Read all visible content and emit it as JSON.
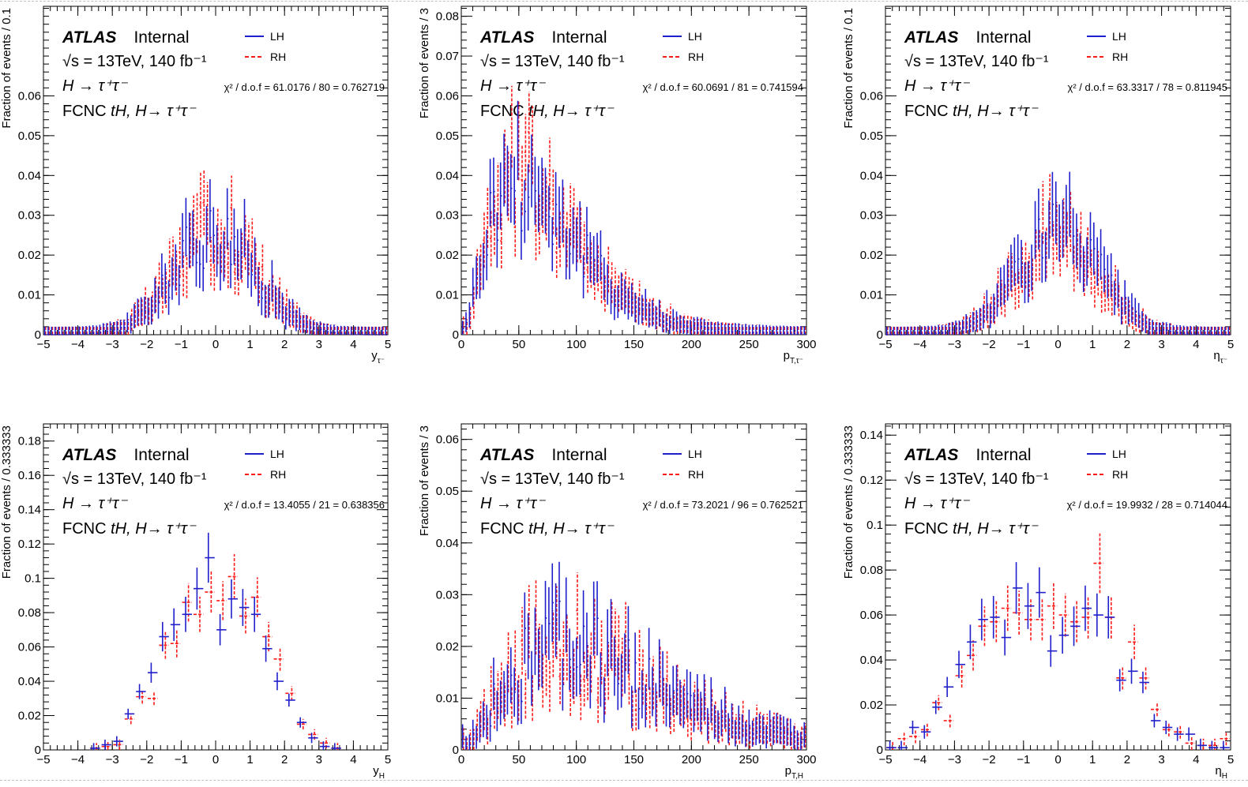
{
  "header": {
    "experiment": "ATLAS",
    "status": "Internal",
    "energy": "√s = 13TeV, 140 fb⁻¹",
    "process": "H → τ⁺τ⁻",
    "channel_prefix": "FCNC ",
    "channel_italic": "tH, H→ τ⁺τ⁻"
  },
  "legend": {
    "lh": "LH",
    "rh": "RH"
  },
  "colors": {
    "lh": "#1f1fcc",
    "rh": "#ff1a1a"
  },
  "chart_data": [
    {
      "type": "scatter",
      "xlabel": "y_τ⁻",
      "ylabel": "Fraction of events / 0.1",
      "xlim": [
        -5,
        5
      ],
      "ylim": [
        0,
        0.0825
      ],
      "xticks": [
        -5,
        -4,
        -3,
        -2,
        -1,
        0,
        1,
        2,
        3,
        4,
        5
      ],
      "xtick_labels": [
        "−5",
        "−4",
        "−3",
        "−2",
        "−1",
        "0",
        "1",
        "2",
        "3",
        "4",
        "5"
      ],
      "yticks": [
        0,
        0.01,
        0.02,
        0.03,
        0.04,
        0.05,
        0.06
      ],
      "ytick_labels": [
        "0",
        "0.01",
        "0.02",
        "0.03",
        "0.04",
        "0.05",
        "0.06"
      ],
      "chi2": "χ² / d.o.f = 61.0176 / 80 = 0.762719",
      "bins": 100,
      "peak": 0.026,
      "width": 1.2,
      "noise": 0.22
    },
    {
      "type": "scatter",
      "xlabel": "p_T,τ⁻",
      "ylabel": "Fraction of events / 3",
      "xlim": [
        0,
        300
      ],
      "ylim": [
        0,
        0.0825
      ],
      "xticks": [
        0,
        50,
        100,
        150,
        200,
        250,
        300
      ],
      "xtick_labels": [
        "0",
        "50",
        "100",
        "150",
        "200",
        "250",
        "300"
      ],
      "yticks": [
        0,
        0.01,
        0.02,
        0.03,
        0.04,
        0.05,
        0.06,
        0.07,
        0.08
      ],
      "ytick_labels": [
        "0",
        "0.01",
        "0.02",
        "0.03",
        "0.04",
        "0.05",
        "0.06",
        "0.07",
        "0.08"
      ],
      "chi2": "χ² / d.o.f = 60.0691 / 81 = 0.741594",
      "bins": 100,
      "peak": 0.04,
      "mode": 50,
      "noise": 0.22
    },
    {
      "type": "scatter",
      "xlabel": "η_τ⁻",
      "ylabel": "Fraction of events / 0.1",
      "xlim": [
        -5,
        5
      ],
      "ylim": [
        0,
        0.0825
      ],
      "xticks": [
        -5,
        -4,
        -3,
        -2,
        -1,
        0,
        1,
        2,
        3,
        4,
        5
      ],
      "xtick_labels": [
        "−5",
        "−4",
        "−3",
        "−2",
        "−1",
        "0",
        "1",
        "2",
        "3",
        "4",
        "5"
      ],
      "yticks": [
        0,
        0.01,
        0.02,
        0.03,
        0.04,
        0.05,
        0.06
      ],
      "ytick_labels": [
        "0",
        "0.01",
        "0.02",
        "0.03",
        "0.04",
        "0.05",
        "0.06"
      ],
      "chi2": "χ² / d.o.f = 63.3317 / 78 = 0.811945",
      "bins": 100,
      "peak": 0.026,
      "width": 1.2,
      "noise": 0.22
    },
    {
      "type": "scatter",
      "xlabel": "y_H",
      "ylabel": "Fraction of events / 0.333333",
      "xlim": [
        -5,
        5
      ],
      "ylim": [
        0,
        0.19
      ],
      "xticks": [
        -5,
        -4,
        -3,
        -2,
        -1,
        0,
        1,
        2,
        3,
        4,
        5
      ],
      "xtick_labels": [
        "−5",
        "−4",
        "−3",
        "−2",
        "−1",
        "0",
        "1",
        "2",
        "3",
        "4",
        "5"
      ],
      "yticks": [
        0,
        0.02,
        0.04,
        0.06,
        0.08,
        0.1,
        0.12,
        0.14,
        0.16,
        0.18
      ],
      "ytick_labels": [
        "0",
        "0.02",
        "0.04",
        "0.06",
        "0.08",
        "0.1",
        "0.12",
        "0.14",
        "0.16",
        "0.18"
      ],
      "chi2": "χ² / d.o.f = 13.4055 / 21 = 0.638356",
      "x": [
        -3.5,
        -3.17,
        -2.83,
        -2.5,
        -2.17,
        -1.83,
        -1.5,
        -1.17,
        -0.83,
        -0.5,
        -0.17,
        0.17,
        0.5,
        0.83,
        1.17,
        1.5,
        1.83,
        2.17,
        2.5,
        2.83,
        3.17,
        3.5
      ],
      "lh": [
        0.001,
        0.003,
        0.005,
        0.021,
        0.034,
        0.045,
        0.066,
        0.073,
        0.079,
        0.094,
        0.112,
        0.07,
        0.088,
        0.083,
        0.079,
        0.059,
        0.04,
        0.029,
        0.016,
        0.007,
        0.002,
        0.001
      ],
      "rh": [
        0.001,
        0.002,
        0.003,
        0.018,
        0.031,
        0.03,
        0.061,
        0.062,
        0.086,
        0.079,
        0.092,
        0.087,
        0.101,
        0.078,
        0.089,
        0.066,
        0.053,
        0.033,
        0.015,
        0.009,
        0.004,
        0.001
      ],
      "err_scale": 0.13
    },
    {
      "type": "scatter",
      "xlabel": "p_T,H",
      "ylabel": "Fraction of events / 3",
      "xlim": [
        0,
        300
      ],
      "ylim": [
        0,
        0.063
      ],
      "xticks": [
        0,
        50,
        100,
        150,
        200,
        250,
        300
      ],
      "xtick_labels": [
        "0",
        "50",
        "100",
        "150",
        "200",
        "250",
        "300"
      ],
      "yticks": [
        0,
        0.01,
        0.02,
        0.03,
        0.04,
        0.05,
        0.06
      ],
      "ytick_labels": [
        "0",
        "0.01",
        "0.02",
        "0.03",
        "0.04",
        "0.05",
        "0.06"
      ],
      "chi2": "χ² / d.o.f = 73.2021 / 96 = 0.762521",
      "bins": 100,
      "peak": 0.02,
      "mode": 85,
      "noise": 0.3
    },
    {
      "type": "scatter",
      "xlabel": "η_H",
      "ylabel": "Fraction of events / 0.333333",
      "xlim": [
        -5,
        5
      ],
      "ylim": [
        0,
        0.145
      ],
      "xticks": [
        -5,
        -4,
        -3,
        -2,
        -1,
        0,
        1,
        2,
        3,
        4,
        5
      ],
      "xtick_labels": [
        "−5",
        "−4",
        "−3",
        "−2",
        "−1",
        "0",
        "1",
        "2",
        "3",
        "4",
        "5"
      ],
      "yticks": [
        0,
        0.02,
        0.04,
        0.06,
        0.08,
        0.1,
        0.12,
        0.14
      ],
      "ytick_labels": [
        "0",
        "0.02",
        "0.04",
        "0.06",
        "0.08",
        "0.1",
        "0.12",
        "0.14"
      ],
      "chi2": "χ² / d.o.f = 19.9932 / 28 = 0.714044",
      "x": [
        -4.83,
        -4.5,
        -4.17,
        -3.83,
        -3.5,
        -3.17,
        -2.83,
        -2.5,
        -2.17,
        -1.83,
        -1.5,
        -1.17,
        -0.83,
        -0.5,
        -0.17,
        0.17,
        0.5,
        0.83,
        1.17,
        1.5,
        1.83,
        2.17,
        2.5,
        2.83,
        3.17,
        3.5,
        3.83,
        4.17,
        4.5,
        4.83
      ],
      "lh": [
        0.001,
        0.001,
        0.01,
        0.008,
        0.019,
        0.028,
        0.038,
        0.048,
        0.058,
        0.059,
        0.05,
        0.072,
        0.064,
        0.07,
        0.044,
        0.051,
        0.055,
        0.063,
        0.06,
        0.059,
        0.031,
        0.035,
        0.03,
        0.013,
        0.01,
        0.007,
        0.007,
        0.002,
        0.001,
        0.001
      ],
      "rh": [
        0.001,
        0.005,
        0.006,
        0.009,
        0.021,
        0.013,
        0.033,
        0.042,
        0.055,
        0.057,
        0.063,
        0.061,
        0.058,
        0.058,
        0.064,
        0.06,
        0.057,
        0.059,
        0.083,
        0.059,
        0.032,
        0.048,
        0.032,
        0.018,
        0.009,
        0.008,
        0.003,
        0.002,
        0.002,
        0.005
      ],
      "err_scale": 0.16
    }
  ]
}
